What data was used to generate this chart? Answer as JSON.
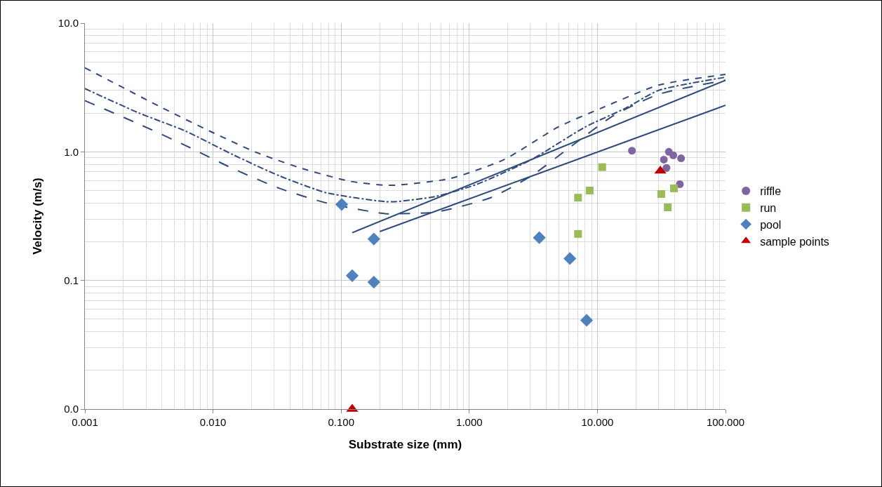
{
  "chart_data": {
    "type": "scatter",
    "xlabel": "Substrate size (mm)",
    "ylabel": "Velocity (m/s)",
    "log": "xy",
    "grid": true,
    "legend": "right",
    "xlim": [
      0.001,
      100
    ],
    "xticks": [
      {
        "value": 0.001,
        "label": "0.001"
      },
      {
        "value": 0.01,
        "label": "0.010"
      },
      {
        "value": 0.1,
        "label": "0.100"
      },
      {
        "value": 1,
        "label": "1.000"
      },
      {
        "value": 10,
        "label": "10.000"
      },
      {
        "value": 100,
        "label": "100.000"
      }
    ],
    "ylim": [
      0.01,
      10
    ],
    "yticks": [
      {
        "value": 0.01,
        "label": "0.0"
      },
      {
        "value": 0.1,
        "label": "0.1"
      },
      {
        "value": 1,
        "label": "1.0"
      },
      {
        "value": 10,
        "label": "10.0"
      }
    ],
    "series": [
      {
        "type": "line",
        "line_style": "dotted",
        "marker": "none",
        "color": "#2f4b7c",
        "x": [
          0.001,
          0.004,
          0.0094,
          0.0217,
          0.05,
          0.117,
          0.22,
          0.27,
          0.71,
          1.87,
          4.95,
          10.8,
          30,
          100
        ],
        "values": [
          4.5,
          2.2,
          1.45,
          0.99,
          0.74,
          0.59,
          0.55,
          0.55,
          0.62,
          0.87,
          1.56,
          2.19,
          3.3,
          4.0
        ]
      },
      {
        "type": "line",
        "line_style": "dashdot",
        "marker": "none",
        "color": "#2f4b7c",
        "x": [
          0.001,
          0.00265,
          0.0061,
          0.0143,
          0.033,
          0.077,
          0.22,
          0.27,
          0.55,
          1.15,
          3.05,
          8.05,
          16.7,
          30,
          100
        ],
        "values": [
          3.1,
          2.0,
          1.45,
          0.95,
          0.65,
          0.48,
          0.41,
          0.41,
          0.45,
          0.56,
          0.87,
          1.56,
          2.19,
          3.0,
          3.8
        ]
      },
      {
        "type": "line",
        "line_style": "dashed",
        "marker": "none",
        "color": "#2f4b7c",
        "x": [
          0.001,
          0.00265,
          0.0061,
          0.0143,
          0.033,
          0.077,
          0.22,
          0.27,
          0.55,
          1.47,
          3.05,
          6.3,
          13.1,
          30,
          100
        ],
        "values": [
          2.5,
          1.64,
          1.12,
          0.74,
          0.52,
          0.4,
          0.33,
          0.33,
          0.34,
          0.44,
          0.65,
          1.11,
          1.89,
          2.8,
          3.6
        ]
      },
      {
        "type": "line",
        "line_style": "solid",
        "marker": "none",
        "color": "#2f4b7c",
        "x": [
          0.122,
          100
        ],
        "values": [
          0.235,
          3.6
        ]
      },
      {
        "type": "line",
        "line_style": "solid",
        "marker": "none",
        "color": "#2f4b7c",
        "x": [
          0.2,
          100
        ],
        "values": [
          0.24,
          2.3
        ]
      },
      {
        "name": "riffle",
        "marker": "circle",
        "color": "#8064a2",
        "x": [
          18.6,
          36.1,
          39.1,
          45,
          33,
          34.6,
          44
        ],
        "values": [
          1.02,
          1.0,
          0.94,
          0.89,
          0.87,
          0.75,
          0.56
        ]
      },
      {
        "name": "run",
        "marker": "square",
        "color": "#9bbb59",
        "x": [
          7.06,
          7.06,
          8.7,
          10.9,
          31.5,
          39.6,
          35.4
        ],
        "values": [
          0.23,
          0.44,
          0.5,
          0.76,
          0.47,
          0.52,
          0.37
        ]
      },
      {
        "name": "pool",
        "marker": "diamond",
        "color": "#4f81bd",
        "x": [
          0.101,
          0.18,
          0.122,
          0.18,
          3.52,
          6.1,
          8.24
        ],
        "values": [
          0.39,
          0.21,
          0.109,
          0.097,
          0.215,
          0.148,
          0.049
        ]
      },
      {
        "name": "sample points",
        "marker": "triangle",
        "color": "#c00000",
        "x": [
          31,
          0.122
        ],
        "values": [
          0.71,
          0.01
        ]
      }
    ]
  }
}
